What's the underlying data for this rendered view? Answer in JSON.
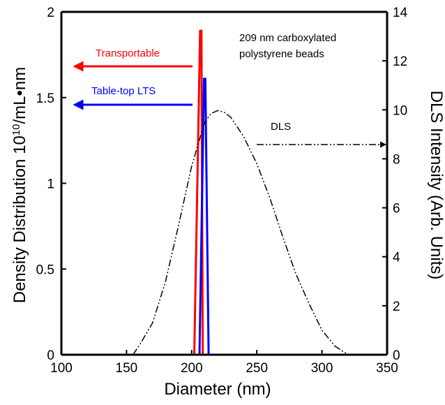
{
  "chart_data": {
    "type": "line",
    "xlabel": "Diameter (nm)",
    "ylabel_left_parts": [
      "Density Distribution 10",
      "10",
      "/mL•nm"
    ],
    "ylabel_right": "DLS Intensity (Arb. Units)",
    "xlim": [
      100,
      350
    ],
    "ylim_left": [
      0,
      2
    ],
    "ylim_right": [
      0,
      14
    ],
    "xticks": [
      "100",
      "150",
      "200",
      "250",
      "300",
      "350"
    ],
    "yticks_left": [
      "0",
      "0.5",
      "1",
      "1.5",
      "2"
    ],
    "yticks_right": [
      "0",
      "2",
      "4",
      "6",
      "8",
      "10",
      "12",
      "14"
    ],
    "annotation_lines": [
      "209 nm carboxylated",
      "polystyrene beads"
    ],
    "series": [
      {
        "name": "Transportable",
        "axis": "left",
        "color": "#ff0000",
        "dash": "solid",
        "x": [
          202,
          206.5,
          207.5,
          208.5
        ],
        "y": [
          0,
          1.89,
          1.89,
          0
        ]
      },
      {
        "name": "Table-top LTS",
        "axis": "left",
        "color": "#0000ff",
        "dash": "solid",
        "x": [
          206,
          209.5,
          210.5,
          213
        ],
        "y": [
          0,
          1.61,
          1.61,
          0
        ]
      },
      {
        "name": "DLS",
        "axis": "right",
        "color": "#000000",
        "dash": "dash-dot-dot",
        "x": [
          155,
          160,
          170,
          180,
          190,
          200,
          210,
          215,
          220,
          225,
          230,
          240,
          250,
          260,
          270,
          280,
          290,
          300,
          310,
          320
        ],
        "y": [
          0,
          0.4,
          1.3,
          3.0,
          5.3,
          7.7,
          9.5,
          9.85,
          9.97,
          9.9,
          9.7,
          8.9,
          7.8,
          6.4,
          4.8,
          3.3,
          2.1,
          1.0,
          0.35,
          0
        ]
      }
    ],
    "legend_arrows": [
      {
        "label": "Transportable",
        "color": "#ff0000",
        "direction": "left"
      },
      {
        "label": "Table-top LTS",
        "color": "#0000ff",
        "direction": "left"
      },
      {
        "label": "DLS",
        "color": "#000000",
        "direction": "right"
      }
    ]
  }
}
